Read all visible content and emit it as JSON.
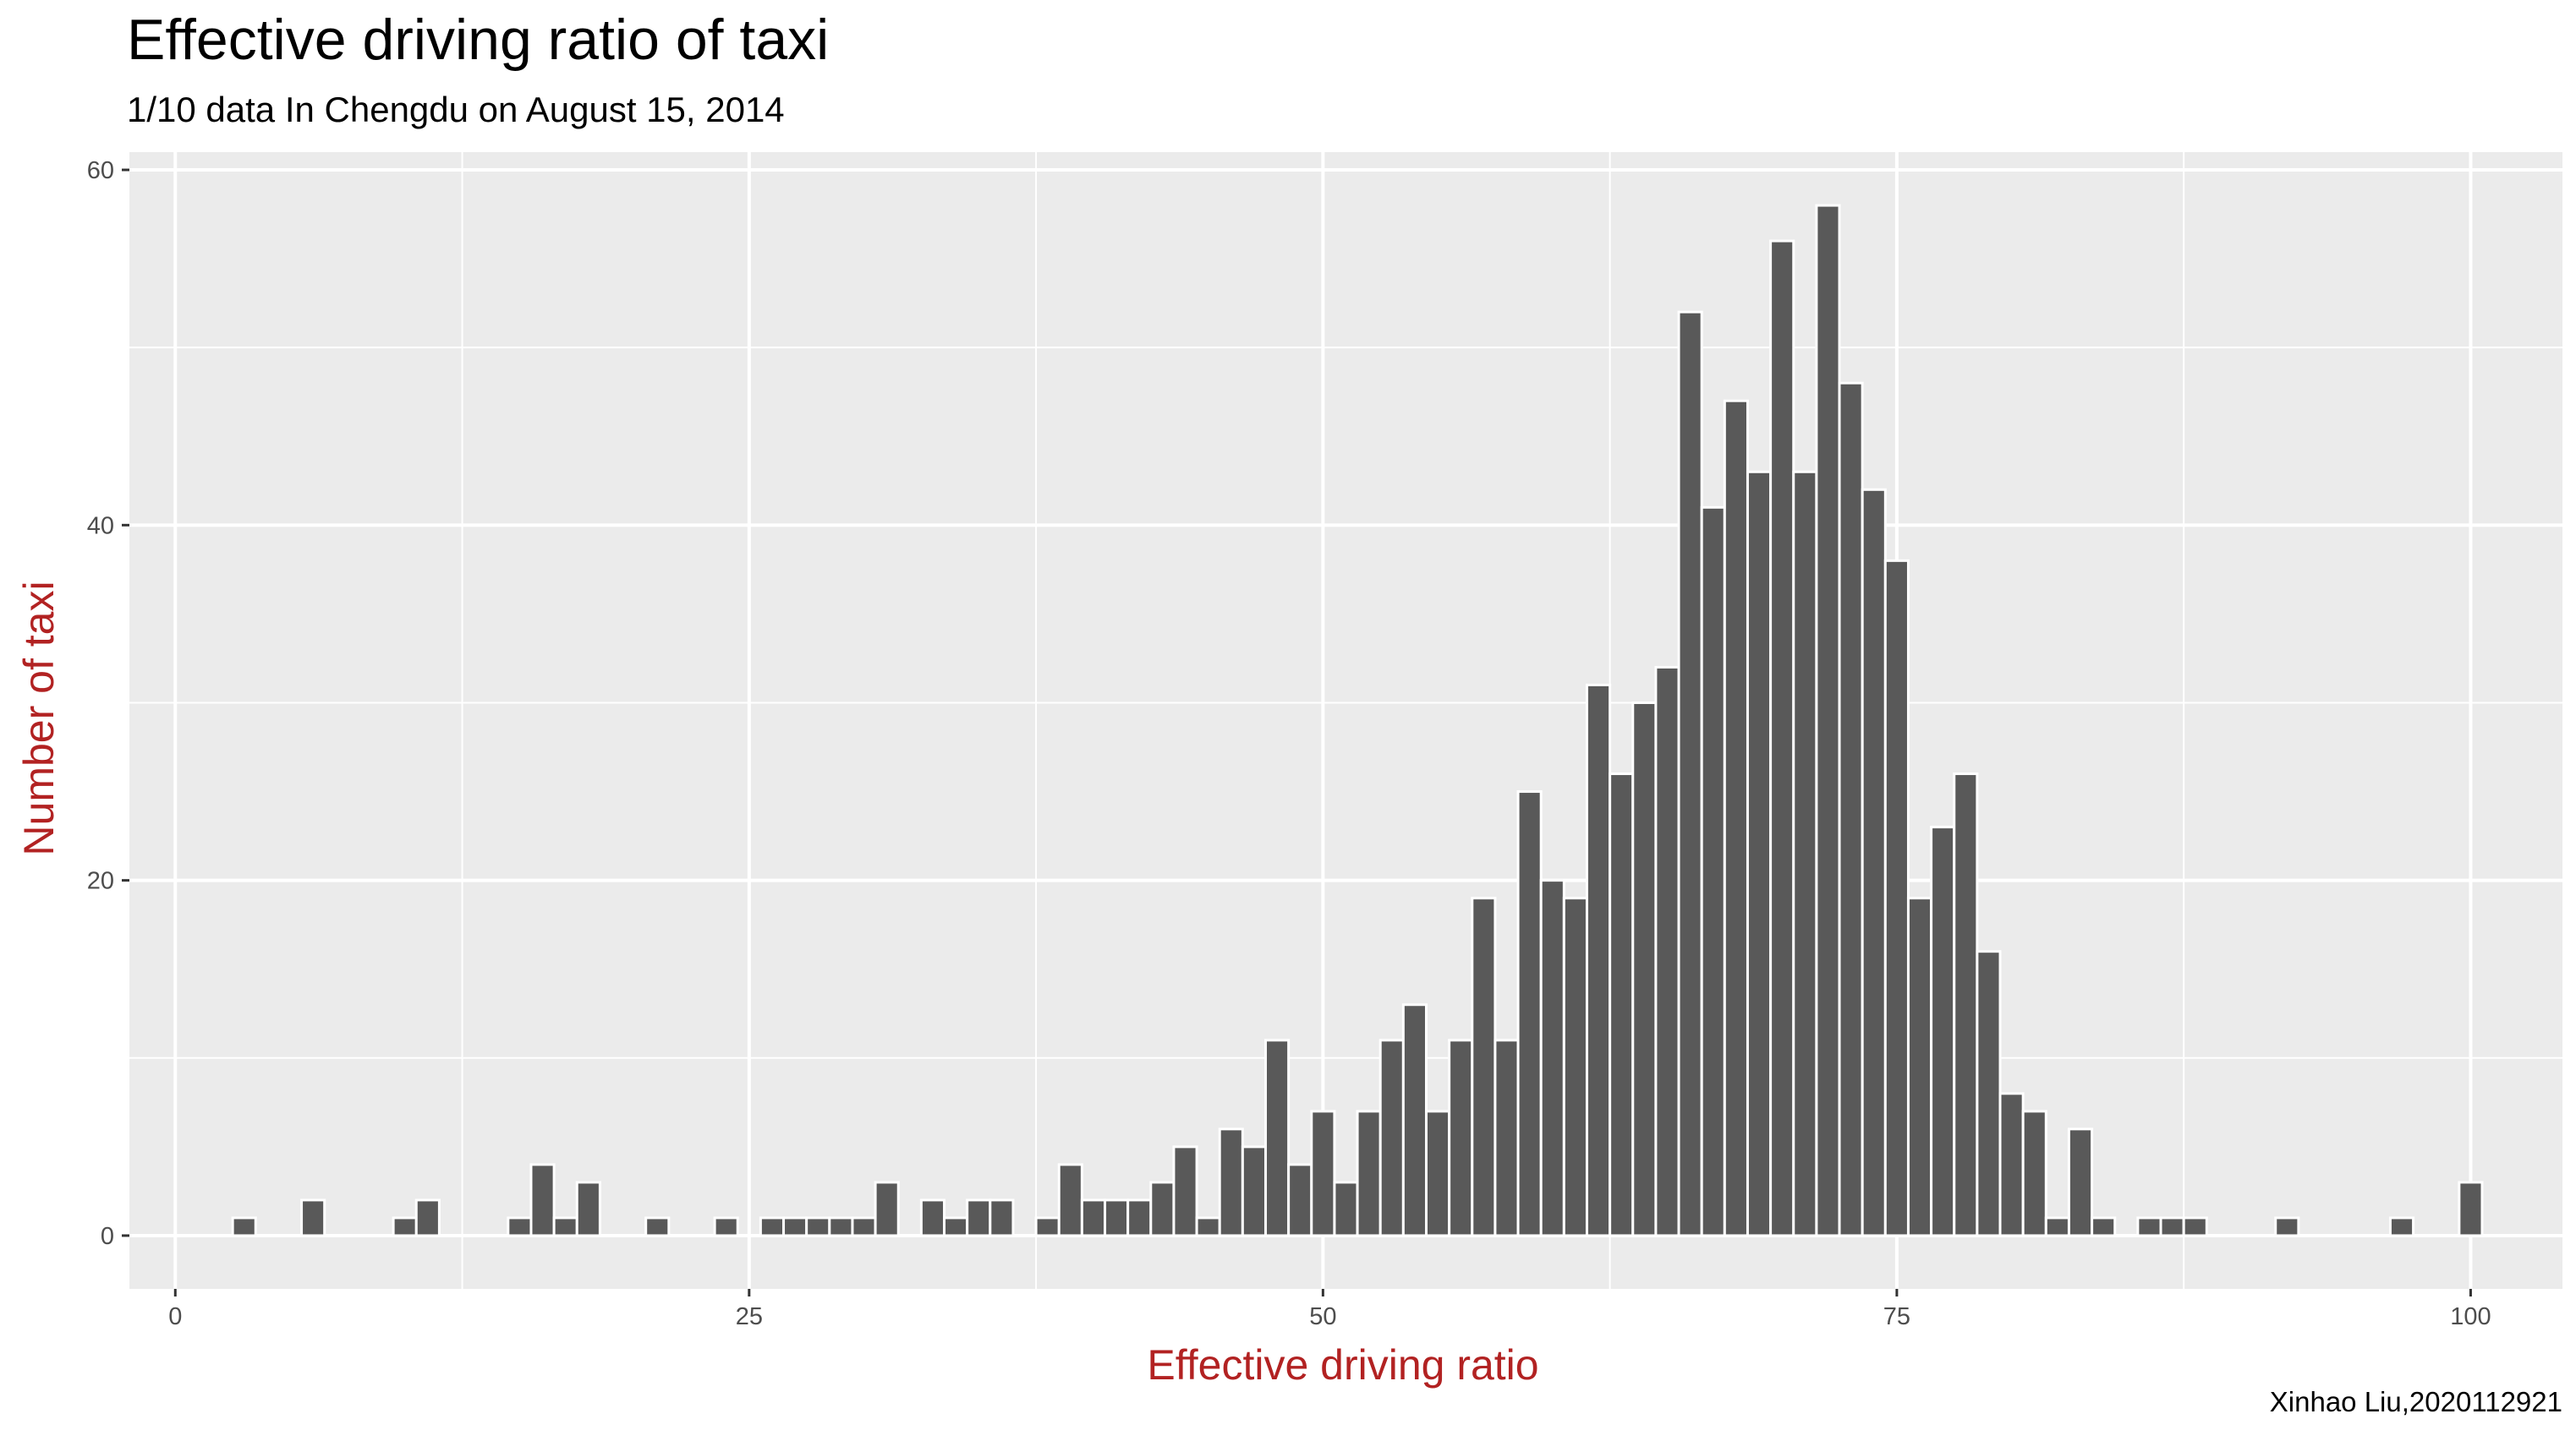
{
  "chart_data": {
    "type": "bar",
    "title": "Effective driving ratio of taxi",
    "subtitle": "1/10 data In Chengdu on August 15, 2014",
    "xlabel": "Effective driving ratio",
    "ylabel": "Number of taxi",
    "caption": "Xinhao Liu,2020112921",
    "xlim": [
      -2,
      104
    ],
    "ylim": [
      -3,
      61
    ],
    "x_ticks": [
      0,
      25,
      50,
      75,
      100
    ],
    "y_ticks": [
      0,
      20,
      40,
      60
    ],
    "grid": true,
    "legend": "none",
    "bar_width": 1,
    "x": [
      3,
      6,
      10,
      11,
      15,
      16,
      17,
      18,
      21,
      24,
      26,
      27,
      28,
      29,
      30,
      31,
      33,
      34,
      35,
      36,
      38,
      39,
      40,
      41,
      42,
      43,
      44,
      45,
      46,
      47,
      48,
      49,
      50,
      51,
      52,
      53,
      54,
      55,
      56,
      57,
      58,
      59,
      60,
      61,
      62,
      63,
      64,
      65,
      66,
      67,
      68,
      69,
      70,
      71,
      72,
      73,
      74,
      75,
      76,
      77,
      78,
      79,
      80,
      81,
      82,
      83,
      84,
      86,
      87,
      88,
      92,
      97,
      100
    ],
    "values": [
      1,
      2,
      1,
      2,
      1,
      4,
      1,
      3,
      1,
      1,
      1,
      1,
      1,
      1,
      1,
      3,
      2,
      1,
      2,
      2,
      1,
      4,
      2,
      2,
      2,
      3,
      5,
      1,
      6,
      5,
      11,
      4,
      7,
      3,
      7,
      11,
      13,
      7,
      11,
      19,
      11,
      25,
      20,
      19,
      31,
      26,
      30,
      32,
      52,
      41,
      47,
      43,
      56,
      43,
      58,
      48,
      42,
      38,
      19,
      23,
      26,
      16,
      8,
      7,
      1,
      6,
      1,
      1,
      1,
      1,
      1,
      1,
      3
    ]
  },
  "colors": {
    "panel_bg": "#ebebeb",
    "grid": "#ffffff",
    "bar_fill": "#595959",
    "bar_outline": "#ffffff",
    "axis_title": "#b22222",
    "tick_text": "#4d4d4d"
  }
}
